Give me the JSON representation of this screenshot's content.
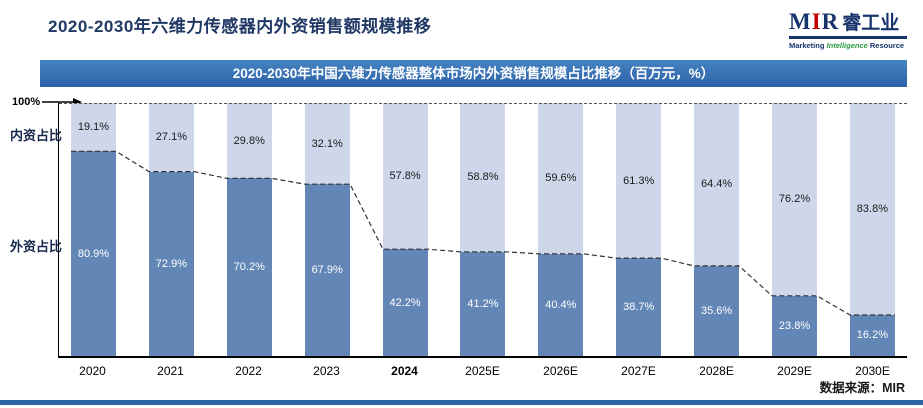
{
  "page_title": "2020-2030年六维力传感器内外资销售额规模推移",
  "logo": {
    "letter_m": "M",
    "letter_i": "I",
    "letter_r": "R",
    "brand_cn": "睿工业",
    "tagline": {
      "word1": "Marketing",
      "word2": "Intelligence",
      "word3": "Resource"
    }
  },
  "banner_title": "2020-2030年中国六维力传感器整体市场内外资销售规模占比推移（百万元，%）",
  "axis": {
    "top_label": "100%",
    "domestic_label": "内资占比",
    "foreign_label": "外资占比"
  },
  "source_note": "数据来源：MIR",
  "colors": {
    "domestic_fill": "#cdd7e9",
    "foreign_fill": "#6286b6",
    "banner_blue": "#2d62a8",
    "title_navy": "#1f3864",
    "accent_red": "#c00000"
  },
  "chart_data": {
    "type": "bar",
    "stacked": true,
    "unit": "%",
    "title": "2020-2030年中国六维力传感器整体市场内外资销售规模占比推移（百万元，%）",
    "categories": [
      "2020",
      "2021",
      "2022",
      "2023",
      "2024",
      "2025E",
      "2026E",
      "2027E",
      "2028E",
      "2029E",
      "2030E"
    ],
    "emphasized_category": "2024",
    "series": [
      {
        "name": "内资占比",
        "color": "#cdd7e9",
        "values": [
          19.1,
          27.1,
          29.8,
          32.1,
          57.8,
          58.8,
          59.6,
          61.3,
          64.4,
          76.2,
          83.8
        ]
      },
      {
        "name": "外资占比",
        "color": "#6286b6",
        "values": [
          80.9,
          72.9,
          70.2,
          67.9,
          42.2,
          41.2,
          40.4,
          38.7,
          35.6,
          23.8,
          16.2
        ]
      }
    ],
    "ylim": [
      0,
      100
    ],
    "boundary_line": "dashed stepped line tracing top of foreign-share segments",
    "legend_position": "left-axis labels"
  }
}
